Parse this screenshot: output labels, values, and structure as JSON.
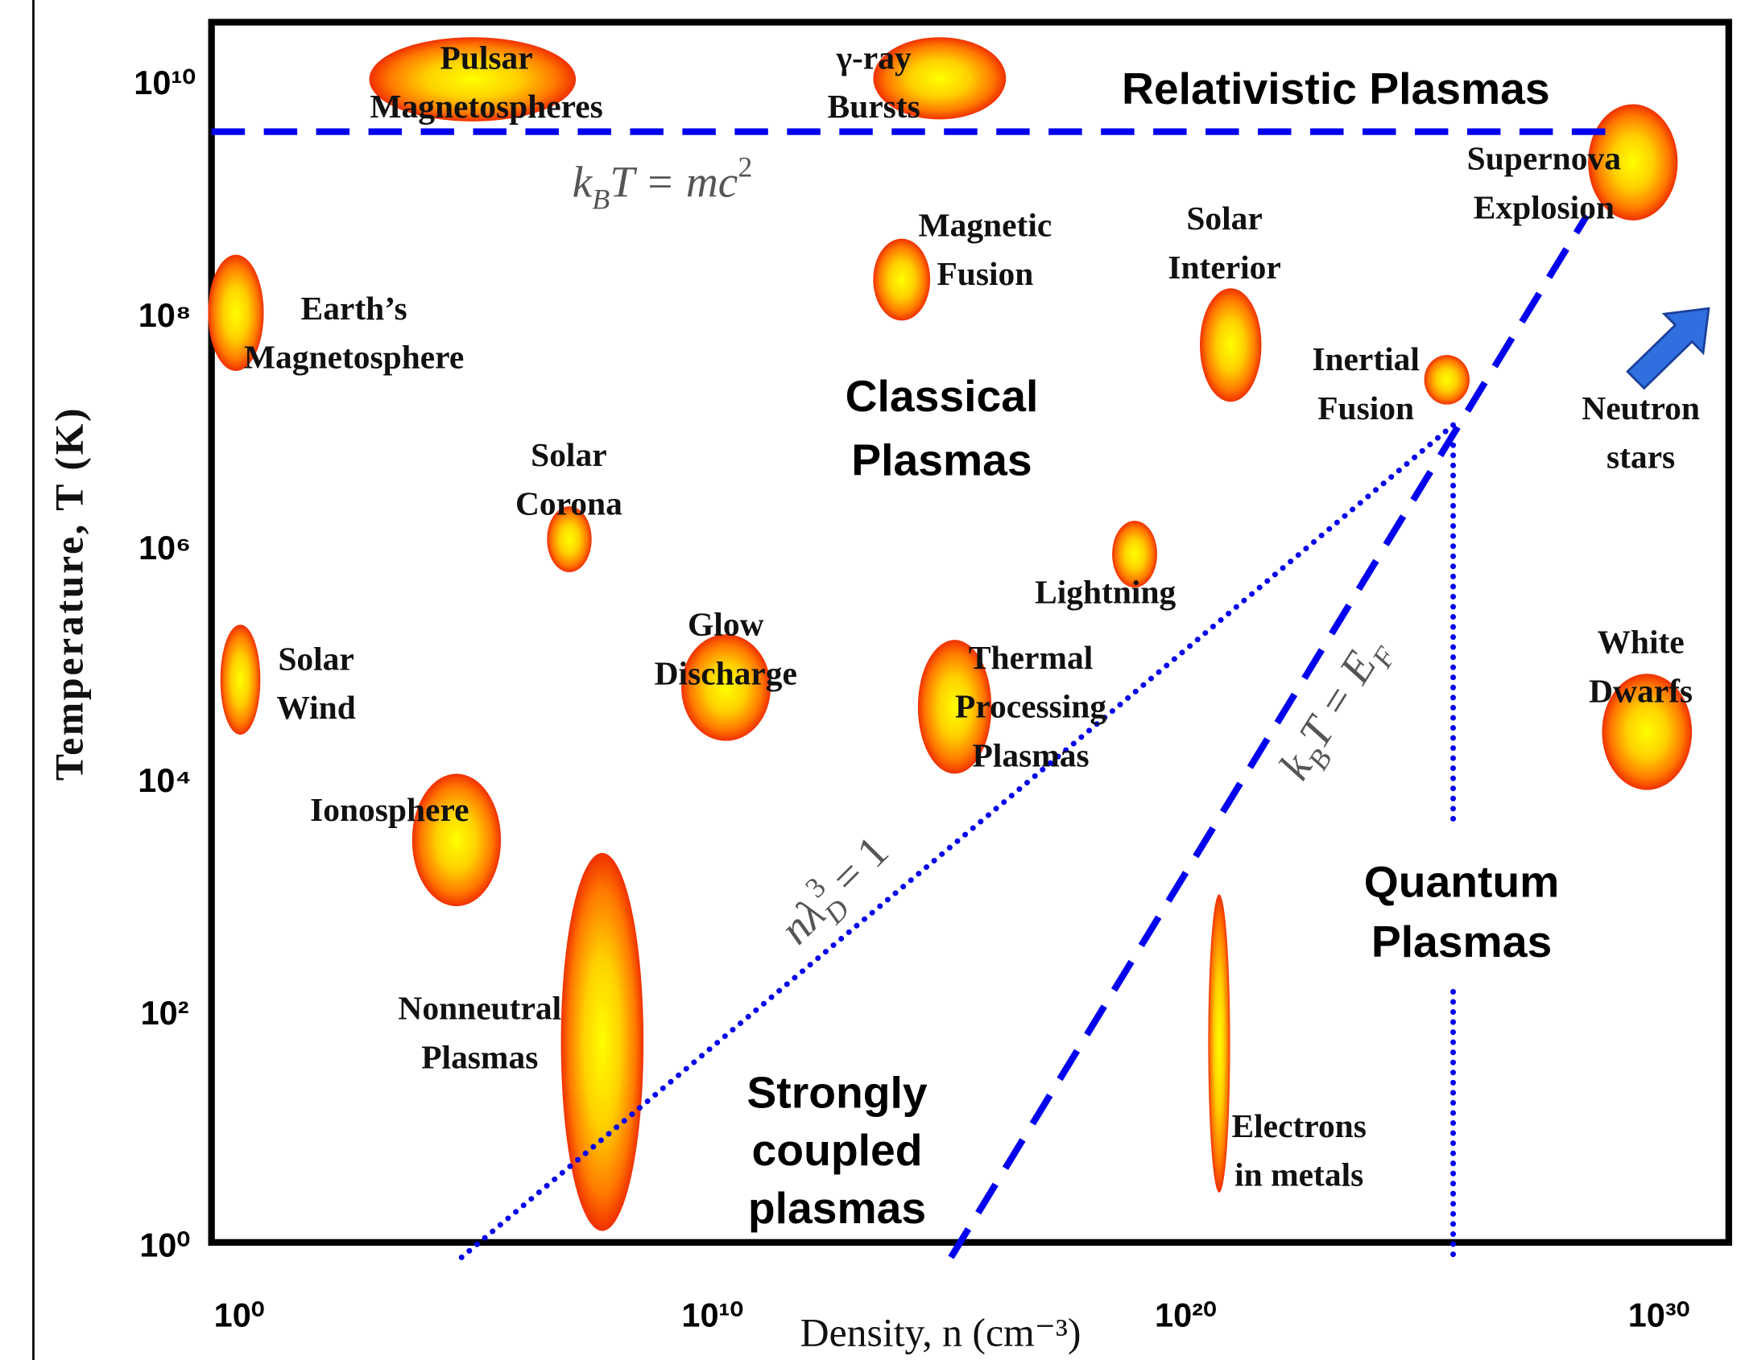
{
  "chart_data": {
    "type": "regions",
    "xlabel": "Density, n (cm⁻³)",
    "ylabel": "Temperature, T (K)",
    "xscale": "log",
    "yscale": "log",
    "xlim": [
      0.26,
      3e+31
    ],
    "ylim": [
      1,
      35000000000.0
    ],
    "xticks": [
      {
        "value": 1,
        "label": "10⁰"
      },
      {
        "value": 10000000000.0,
        "label": "10¹⁰"
      },
      {
        "value": 1e+20,
        "label": "10²⁰"
      },
      {
        "value": 1e+30,
        "label": "10³⁰"
      }
    ],
    "yticks": [
      {
        "value": 1,
        "label": "10⁰"
      },
      {
        "value": 100.0,
        "label": "10²"
      },
      {
        "value": 10000.0,
        "label": "10⁴"
      },
      {
        "value": 1000000.0,
        "label": "10⁶"
      },
      {
        "value": 100000000.0,
        "label": "10⁸"
      },
      {
        "value": 10000000000.0,
        "label": "10¹⁰"
      }
    ],
    "grid": false,
    "line_color": "#0000ee",
    "regions": [
      {
        "name": [
          "Pulsar",
          "Magnetospheres"
        ],
        "x": [
          560.0,
          13000000.0
        ],
        "y": [
          4900000000.0,
          26000000000.0
        ]
      },
      {
        "name": [
          "γ-ray",
          "Bursts"
        ],
        "x": [
          25000000000000.0,
          1.6e+16
        ],
        "y": [
          5100000000.0,
          26000000000.0
        ]
      },
      {
        "name": [
          "Supernova",
          "Explosion"
        ],
        "x": [
          3.2e+28,
          2.5e+30
        ],
        "y": [
          690000000.0,
          6900000000.0
        ]
      },
      {
        "name": [
          "Magnetic",
          "Fusion"
        ],
        "x": [
          25000000000000.0,
          400000000000000.0
        ],
        "y": [
          95000000.0,
          480000000.0
        ]
      },
      {
        "name": [
          "Earth’s",
          "Magnetosphere"
        ],
        "x": [
          0.22,
          3.3
        ],
        "y": [
          35000000.0,
          350000000.0
        ]
      },
      {
        "name": [
          "Solar",
          "Interior"
        ],
        "x": [
          2e+20,
          4e+21
        ],
        "y": [
          19000000.0,
          180000000.0
        ]
      },
      {
        "name": [
          "Inertial",
          "Fusion"
        ],
        "x": [
          1.1e+25,
          1e+26
        ],
        "y": [
          18000000.0,
          48000000.0
        ]
      },
      {
        "name": [
          "Solar",
          "Corona"
        ],
        "x": [
          3200000.0,
          28000000.0
        ],
        "y": [
          650000.0,
          2400000.0
        ]
      },
      {
        "name": [
          "Lightning"
        ],
        "x": [
          2.8e+18,
          2.5e+19
        ],
        "y": [
          480000.0,
          1800000.0
        ]
      },
      {
        "name": [
          "Solar",
          "Wind"
        ],
        "x": [
          0.4,
          2.8
        ],
        "y": [
          26000.0,
          230000.0
        ]
      },
      {
        "name": [
          "Glow",
          "Discharge"
        ],
        "x": [
          2200000000.0,
          170000000000.0
        ],
        "y": [
          23000.0,
          190000.0
        ]
      },
      {
        "name": [
          "Thermal",
          "Processing",
          "Plasmas"
        ],
        "x": [
          220000000000000.0,
          7900000000000000.0
        ],
        "y": [
          12000.0,
          170000.0
        ]
      },
      {
        "name": [
          "White",
          "Dwarfs"
        ],
        "x": [
          6.3e+28,
          5e+30
        ],
        "y": [
          8700.0,
          87000.0
        ]
      },
      {
        "name": [
          "Ionosphere"
        ],
        "x": [
          4500.0,
          340000.0
        ],
        "y": [
          870.0,
          12000.0
        ]
      },
      {
        "name": [
          "Nonneutral",
          "Plasmas"
        ],
        "x": [
          6300000.0,
          350000000.0
        ],
        "y": [
          1.4,
          2500.0
        ]
      },
      {
        "name": [
          "Electrons",
          "in metals"
        ],
        "x": [
          3e+20,
          8.7e+20
        ],
        "y": [
          3,
          1100.0
        ]
      }
    ],
    "lines": [
      {
        "label": [
          "k",
          "B",
          "T = mc",
          "2"
        ],
        "style": "dashed",
        "x": [
          0.26,
          8e+28
        ],
        "y": [
          4000000000.0,
          4000000000.0
        ]
      },
      {
        "label": [
          "k",
          "B",
          "T = E",
          "F"
        ],
        "style": "dashed",
        "x": [
          1100000000000000.0,
          3e+28
        ],
        "y": [
          0.83,
          760000000.0
        ]
      },
      {
        "label": [
          "nλ",
          "D",
          "3",
          " = 1"
        ],
        "style": "dotted",
        "x": [
          50000.0,
          4.5e+25
        ],
        "y": [
          0.83,
          12000000.0
        ]
      },
      {
        "style": "dotted",
        "x": [
          4.5e+25,
          4.5e+25,
          4.5e+25,
          4.5e+25,
          4.5e+25
        ],
        "y": [
          12000000.0,
          4300.0,
          null,
          160.0,
          0.83
        ]
      }
    ],
    "zones": [
      [
        "Relativistic Plasmas"
      ],
      [
        "Classical",
        "Plasmas"
      ],
      [
        "Quantum",
        "Plasmas"
      ],
      [
        "Strongly",
        "coupled",
        "plasmas"
      ]
    ],
    "annotations": [
      [
        "Neutron",
        "stars"
      ]
    ]
  }
}
